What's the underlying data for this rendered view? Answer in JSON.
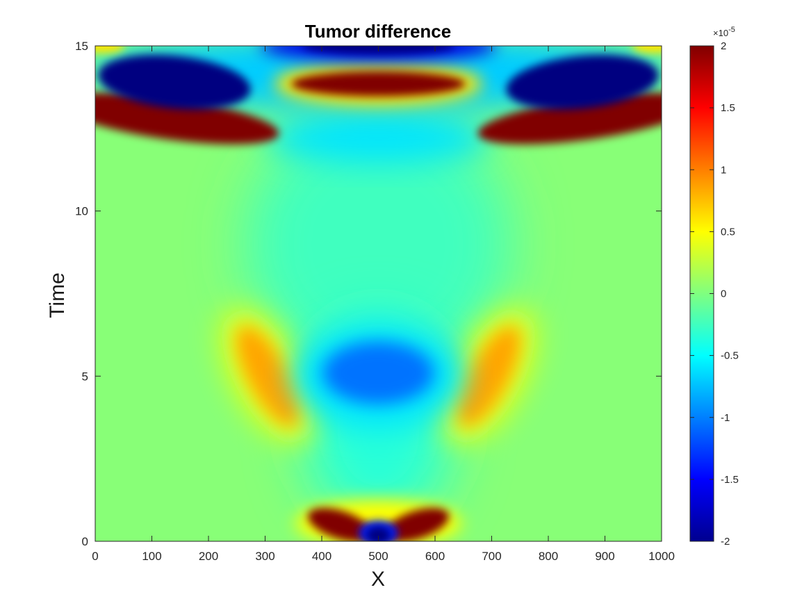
{
  "chart_data": {
    "type": "heatmap",
    "title": "Tumor difference",
    "xlabel": "X",
    "ylabel": "Time",
    "xlim": [
      0,
      1000
    ],
    "ylim": [
      0,
      15
    ],
    "xticks": [
      0,
      100,
      200,
      300,
      400,
      500,
      600,
      700,
      800,
      900,
      1000
    ],
    "yticks": [
      0,
      5,
      10,
      15
    ],
    "colormap": "jet",
    "clim": [
      -2e-05,
      2e-05
    ],
    "colorbar": {
      "ticks": [
        -2,
        -1.5,
        -1,
        -0.5,
        0,
        0.5,
        1,
        1.5,
        2
      ],
      "tick_labels": [
        "-2",
        "-1.5",
        "-1",
        "-0.5",
        "0",
        "0.5",
        "1",
        "1.5",
        "2"
      ],
      "multiplier_label": "×10",
      "multiplier_exponent": "-5",
      "placement": "right"
    },
    "grid": false,
    "features": [
      {
        "x": 500,
        "t": 0.2,
        "value": -2.0,
        "note": "deep minimum at bottom center"
      },
      {
        "x": 420,
        "t": 0.5,
        "value": 2.0
      },
      {
        "x": 580,
        "t": 0.5,
        "value": 2.0
      },
      {
        "x": 500,
        "t": 5.0,
        "value": -1.1
      },
      {
        "x": 305,
        "t": 5.0,
        "value": 0.9
      },
      {
        "x": 695,
        "t": 5.0,
        "value": 0.9
      },
      {
        "x": 500,
        "t": 13.9,
        "value": 2.0
      },
      {
        "x": 130,
        "t": 13.8,
        "value": -2.0
      },
      {
        "x": 870,
        "t": 13.8,
        "value": -2.0
      },
      {
        "x": 120,
        "t": 12.8,
        "value": 2.0
      },
      {
        "x": 880,
        "t": 12.8,
        "value": 2.0
      },
      {
        "x": 500,
        "t": 15.0,
        "value": -2.0
      },
      {
        "x": 500,
        "t": 12.0,
        "value": -0.6
      }
    ],
    "background_value": 0.1
  }
}
